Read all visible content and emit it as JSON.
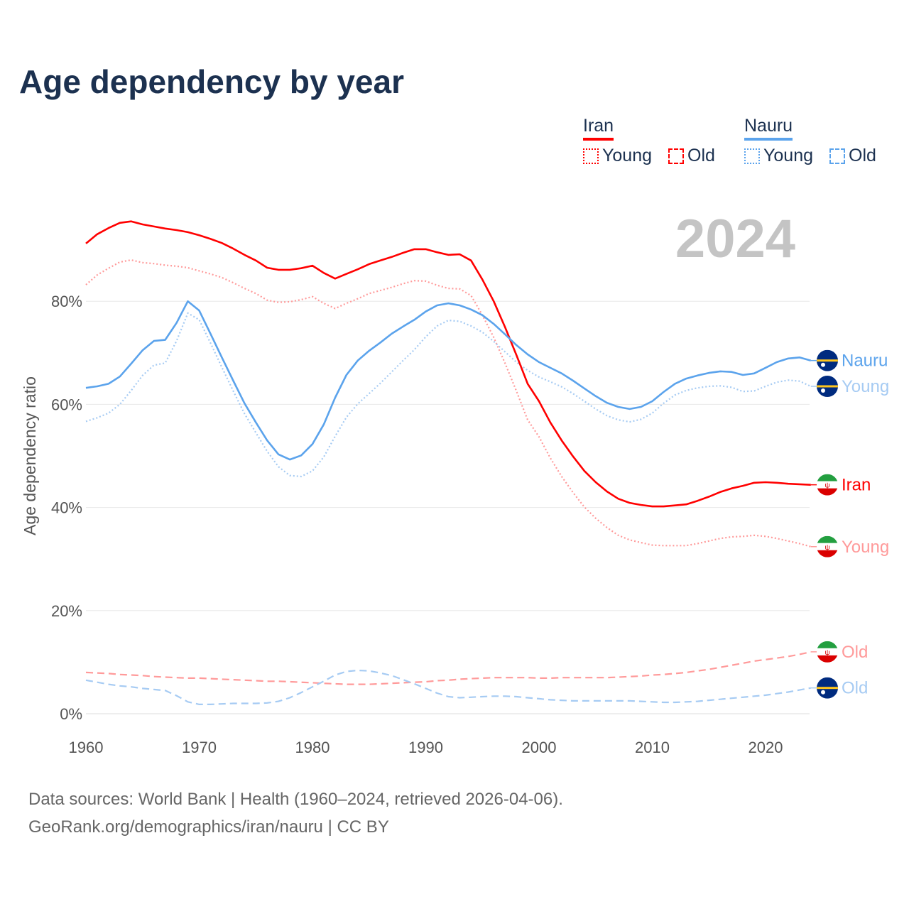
{
  "title": "Age dependency by year",
  "legend": {
    "groups": [
      {
        "country": "Iran",
        "color": "#ff0000",
        "light": "#ff9a9a",
        "items": [
          "Young",
          "Old"
        ]
      },
      {
        "country": "Nauru",
        "color": "#5ba3ec",
        "light": "#a6cbf3",
        "items": [
          "Young",
          "Old"
        ]
      }
    ]
  },
  "year_label": "2024",
  "footer": {
    "line1": "Data sources: World Bank | Health (1960–2024, retrieved 2026-04-06).",
    "line2": "GeoRank.org/demographics/iran/nauru | CC BY"
  },
  "chart_data": {
    "type": "line",
    "title": "Age dependency by year",
    "xlabel": "",
    "ylabel": "Age dependency ratio",
    "xlim": [
      1960,
      2024
    ],
    "ylim": [
      0,
      100
    ],
    "x_ticks": [
      "1960",
      "1970",
      "1980",
      "1990",
      "2000",
      "2010",
      "2020"
    ],
    "y_ticks": [
      "0%",
      "20%",
      "40%",
      "60%",
      "80%"
    ],
    "x_start": 1960,
    "series": [
      {
        "name": "Iran",
        "end_label": "Iran",
        "country": "Iran",
        "style": "solid",
        "color": "#ff0000",
        "values": [
          91.2,
          93.0,
          94.2,
          95.2,
          95.5,
          94.9,
          94.5,
          94.1,
          93.8,
          93.4,
          92.8,
          92.1,
          91.3,
          90.2,
          89.0,
          87.9,
          86.5,
          86.1,
          86.1,
          86.4,
          86.9,
          85.5,
          84.4,
          85.3,
          86.2,
          87.2,
          87.9,
          88.6,
          89.4,
          90.1,
          90.1,
          89.5,
          89.0,
          89.1,
          87.9,
          84.2,
          80.0,
          75.0,
          69.6,
          64.0,
          60.6,
          56.5,
          53.0,
          49.9,
          47.1,
          44.9,
          43.1,
          41.7,
          40.9,
          40.5,
          40.2,
          40.2,
          40.4,
          40.6,
          41.3,
          42.1,
          43.0,
          43.7,
          44.2,
          44.8,
          44.9,
          44.8,
          44.6,
          44.5,
          44.4
        ]
      },
      {
        "name": "Iran Young",
        "end_label": "Young",
        "country": "Iran",
        "style": "dotted",
        "color": "#ff9a9a",
        "values": [
          83.2,
          85.1,
          86.4,
          87.6,
          88.0,
          87.5,
          87.3,
          87.0,
          86.8,
          86.5,
          85.9,
          85.3,
          84.6,
          83.6,
          82.5,
          81.5,
          80.2,
          79.8,
          79.9,
          80.3,
          80.9,
          79.6,
          78.6,
          79.6,
          80.5,
          81.5,
          82.1,
          82.7,
          83.4,
          84.0,
          83.9,
          83.1,
          82.5,
          82.4,
          81.1,
          77.3,
          73.0,
          68.0,
          62.6,
          57.0,
          53.7,
          49.6,
          46.0,
          42.9,
          40.1,
          37.9,
          36.1,
          34.6,
          33.7,
          33.2,
          32.7,
          32.6,
          32.6,
          32.6,
          33.0,
          33.5,
          34.0,
          34.3,
          34.4,
          34.6,
          34.4,
          34.0,
          33.5,
          33.0,
          32.4
        ]
      },
      {
        "name": "Iran Old",
        "end_label": "Old",
        "country": "Iran",
        "style": "dashed",
        "color": "#ff9a9a",
        "values": [
          8.0,
          7.9,
          7.8,
          7.6,
          7.5,
          7.4,
          7.2,
          7.1,
          7.0,
          6.9,
          6.9,
          6.8,
          6.7,
          6.6,
          6.5,
          6.4,
          6.3,
          6.3,
          6.2,
          6.1,
          6.0,
          5.9,
          5.8,
          5.7,
          5.7,
          5.7,
          5.8,
          5.9,
          6.0,
          6.1,
          6.2,
          6.4,
          6.5,
          6.7,
          6.8,
          6.9,
          7.0,
          7.0,
          7.0,
          7.0,
          6.9,
          6.9,
          7.0,
          7.0,
          7.0,
          7.0,
          7.0,
          7.1,
          7.2,
          7.3,
          7.5,
          7.6,
          7.8,
          8.0,
          8.3,
          8.6,
          9.0,
          9.4,
          9.8,
          10.2,
          10.5,
          10.8,
          11.1,
          11.5,
          12.0
        ]
      },
      {
        "name": "Nauru",
        "end_label": "Nauru",
        "country": "Nauru",
        "style": "solid",
        "color": "#5ba3ec",
        "values": [
          63.2,
          63.5,
          64.0,
          65.4,
          67.9,
          70.5,
          72.3,
          72.5,
          75.8,
          80.0,
          78.2,
          73.7,
          69.1,
          64.6,
          60.2,
          56.5,
          53.0,
          50.3,
          49.3,
          50.1,
          52.3,
          56.1,
          61.3,
          65.7,
          68.5,
          70.4,
          72.0,
          73.7,
          75.1,
          76.4,
          78.0,
          79.2,
          79.6,
          79.2,
          78.4,
          77.3,
          75.6,
          73.6,
          71.5,
          69.7,
          68.2,
          67.1,
          66.0,
          64.6,
          63.1,
          61.6,
          60.3,
          59.5,
          59.1,
          59.5,
          60.6,
          62.4,
          64.0,
          65.0,
          65.6,
          66.1,
          66.4,
          66.3,
          65.7,
          66.0,
          67.1,
          68.2,
          68.9,
          69.1,
          68.5
        ]
      },
      {
        "name": "Nauru Young",
        "end_label": "Young",
        "country": "Nauru",
        "style": "dotted",
        "color": "#a6cbf3",
        "values": [
          56.7,
          57.4,
          58.3,
          60.0,
          62.7,
          65.6,
          67.6,
          68.0,
          72.3,
          77.7,
          76.4,
          71.9,
          67.2,
          62.6,
          58.2,
          54.5,
          50.9,
          47.9,
          46.2,
          46.0,
          47.1,
          49.8,
          53.8,
          57.5,
          60.1,
          62.1,
          64.1,
          66.3,
          68.5,
          70.6,
          73.1,
          75.2,
          76.3,
          76.1,
          75.2,
          74.0,
          72.2,
          70.2,
          68.2,
          66.6,
          65.3,
          64.4,
          63.4,
          62.1,
          60.6,
          59.1,
          57.8,
          57.0,
          56.6,
          57.1,
          58.3,
          60.2,
          61.8,
          62.7,
          63.2,
          63.5,
          63.6,
          63.3,
          62.5,
          62.6,
          63.5,
          64.3,
          64.7,
          64.5,
          63.5
        ]
      },
      {
        "name": "Nauru Old",
        "end_label": "Old",
        "country": "Nauru",
        "style": "dashed",
        "color": "#a6cbf3",
        "values": [
          6.5,
          6.1,
          5.7,
          5.4,
          5.2,
          4.9,
          4.7,
          4.5,
          3.5,
          2.3,
          1.8,
          1.8,
          1.9,
          2.0,
          2.0,
          2.0,
          2.1,
          2.4,
          3.1,
          4.1,
          5.2,
          6.3,
          7.5,
          8.2,
          8.4,
          8.3,
          7.9,
          7.4,
          6.6,
          5.8,
          4.9,
          4.0,
          3.3,
          3.1,
          3.2,
          3.3,
          3.4,
          3.4,
          3.3,
          3.1,
          2.9,
          2.7,
          2.6,
          2.5,
          2.5,
          2.5,
          2.5,
          2.5,
          2.5,
          2.4,
          2.3,
          2.2,
          2.2,
          2.3,
          2.4,
          2.6,
          2.8,
          3.0,
          3.2,
          3.4,
          3.6,
          3.9,
          4.2,
          4.6,
          5.0
        ]
      }
    ]
  }
}
